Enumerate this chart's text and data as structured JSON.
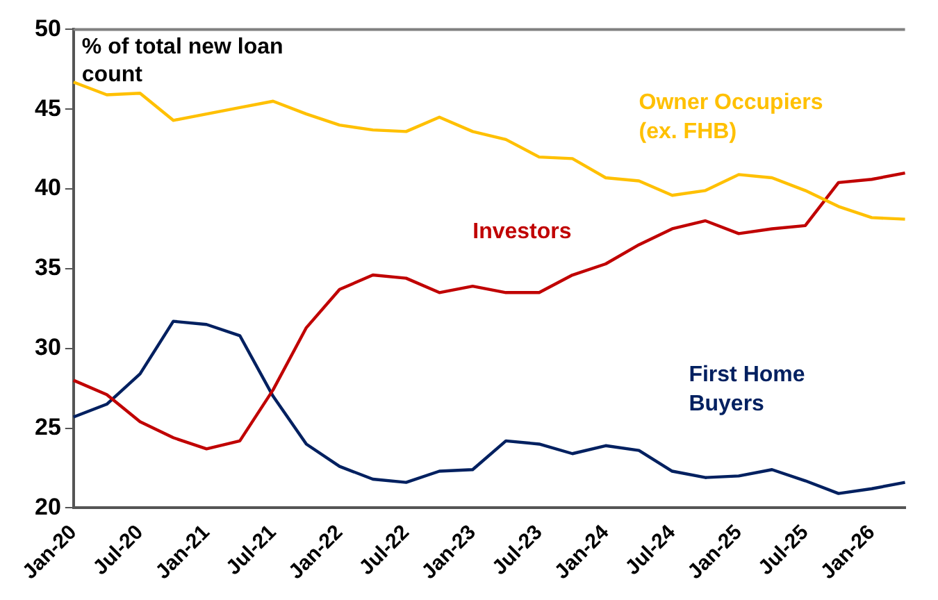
{
  "chart_data": {
    "type": "line",
    "ylabel": "% of total new loan count",
    "categories": [
      "Jan-20",
      null,
      "Jul-20",
      null,
      "Jan-21",
      null,
      "Jul-21",
      null,
      "Jan-22",
      null,
      "Jul-22",
      null,
      "Jan-23",
      null,
      "Jul-23",
      null,
      "Jan-24",
      null,
      "Jul-24",
      null,
      "Jan-25",
      null,
      "Jul-25",
      null,
      "Jan-26",
      null
    ],
    "series": [
      {
        "name": "Owner Occupiers (ex. FHB)",
        "color": "#ffc000",
        "values": [
          46.7,
          45.9,
          46.0,
          44.3,
          44.7,
          45.1,
          45.5,
          44.7,
          44.0,
          43.7,
          43.6,
          44.5,
          43.6,
          43.1,
          42.0,
          41.9,
          40.7,
          40.5,
          39.6,
          39.9,
          40.9,
          40.7,
          39.9,
          38.9,
          38.2,
          38.1
        ]
      },
      {
        "name": "Investors",
        "color": "#c00000",
        "values": [
          28.0,
          27.1,
          25.4,
          24.4,
          23.7,
          24.2,
          27.4,
          31.3,
          33.7,
          34.6,
          34.4,
          33.5,
          33.9,
          33.5,
          33.5,
          34.6,
          35.3,
          36.5,
          37.5,
          38.0,
          37.2,
          37.5,
          37.7,
          40.4,
          40.6,
          41.0
        ]
      },
      {
        "name": "First Home Buyers",
        "color": "#002060",
        "values": [
          25.7,
          26.5,
          28.4,
          31.7,
          31.5,
          30.8,
          27.0,
          24.0,
          22.6,
          21.8,
          21.6,
          22.3,
          22.4,
          24.2,
          24.0,
          23.4,
          23.9,
          23.6,
          22.3,
          21.9,
          22.0,
          22.4,
          21.7,
          20.9,
          21.2,
          21.6
        ]
      }
    ],
    "ylim": [
      20,
      50
    ],
    "yticks": [
      20,
      25,
      30,
      35,
      40,
      45,
      50
    ],
    "grid": false,
    "legend": false,
    "marker": "none",
    "line_style": "solid"
  }
}
